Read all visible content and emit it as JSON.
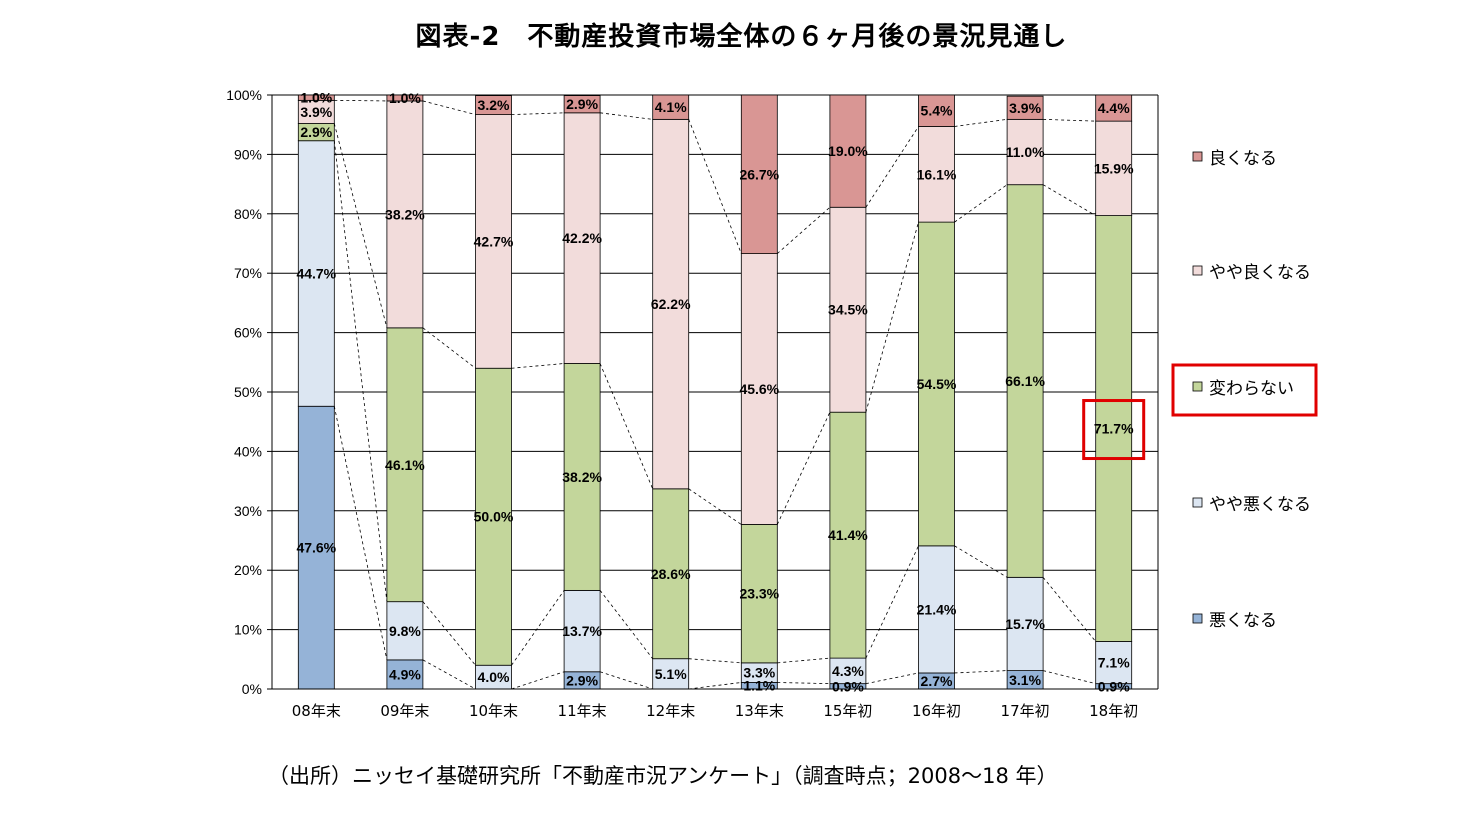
{
  "title": "図表-2　不動産投資市場全体の６ヶ月後の景況見通し",
  "source": "（出所）ニッセイ基礎研究所「不動産市況アンケート」（調査時点；2008～18 年）",
  "chart_data": {
    "type": "bar",
    "stacked": true,
    "categories": [
      "08年末",
      "09年末",
      "10年末",
      "11年末",
      "12年末",
      "13年末",
      "15年初",
      "16年初",
      "17年初",
      "18年初"
    ],
    "ylim": [
      0,
      100
    ],
    "yticks": [
      "0%",
      "10%",
      "20%",
      "30%",
      "40%",
      "50%",
      "60%",
      "70%",
      "80%",
      "90%",
      "100%"
    ],
    "grid": true,
    "legend_position": "right",
    "series": [
      {
        "name": "悪くなる",
        "color": "#95b3d7",
        "values": [
          47.6,
          4.9,
          0.0,
          2.9,
          0.0,
          1.1,
          0.9,
          2.7,
          3.1,
          0.9
        ],
        "labels": [
          "47.6%",
          "4.9%",
          "",
          "2.9%",
          "",
          "1.1%",
          "0.9%",
          "2.7%",
          "3.1%",
          "0.9%"
        ]
      },
      {
        "name": "やや悪くなる",
        "color": "#dce6f2",
        "values": [
          44.7,
          9.8,
          4.0,
          13.7,
          5.1,
          3.3,
          4.3,
          21.4,
          15.7,
          7.1
        ],
        "labels": [
          "44.7%",
          "9.8%",
          "4.0%",
          "13.7%",
          "5.1%",
          "3.3%",
          "4.3%",
          "21.4%",
          "15.7%",
          "7.1%"
        ]
      },
      {
        "name": "変わらない",
        "color": "#c3d69b",
        "values": [
          2.9,
          46.1,
          50.0,
          38.2,
          28.6,
          23.3,
          41.4,
          54.5,
          66.1,
          71.7
        ],
        "labels": [
          "2.9%",
          "46.1%",
          "50.0%",
          "38.2%",
          "28.6%",
          "23.3%",
          "41.4%",
          "54.5%",
          "66.1%",
          "71.7%"
        ]
      },
      {
        "name": "やや良くなる",
        "color": "#f2dcdb",
        "values": [
          3.9,
          38.2,
          42.7,
          42.2,
          62.2,
          45.6,
          34.5,
          16.1,
          11.0,
          15.9
        ],
        "labels": [
          "3.9%",
          "38.2%",
          "42.7%",
          "42.2%",
          "62.2%",
          "45.6%",
          "34.5%",
          "16.1%",
          "11.0%",
          "15.9%"
        ]
      },
      {
        "name": "良くなる",
        "color": "#d99694",
        "values": [
          1.0,
          1.0,
          3.2,
          2.9,
          4.1,
          26.7,
          19.0,
          5.4,
          3.9,
          4.4
        ],
        "labels": [
          "1.0%",
          "1.0%",
          "3.2%",
          "2.9%",
          "4.1%",
          "26.7%",
          "19.0%",
          "5.4%",
          "3.9%",
          "4.4%"
        ]
      }
    ],
    "highlight": {
      "series": "変わらない",
      "category": "18年初",
      "color": "#e00000"
    }
  }
}
